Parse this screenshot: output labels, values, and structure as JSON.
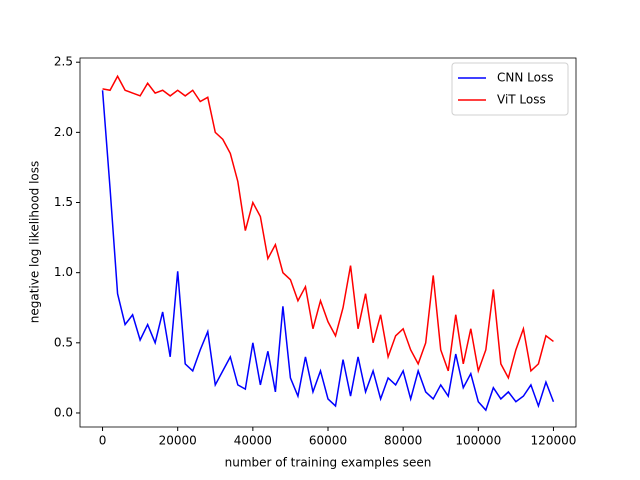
{
  "chart_data": {
    "type": "line",
    "xlabel": "number of training examples seen",
    "ylabel": "negative log likelihood loss",
    "x": [
      0,
      2000,
      4000,
      6000,
      8000,
      10000,
      12000,
      14000,
      16000,
      18000,
      20000,
      22000,
      24000,
      26000,
      28000,
      30000,
      32000,
      34000,
      36000,
      38000,
      40000,
      42000,
      44000,
      46000,
      48000,
      50000,
      52000,
      54000,
      56000,
      58000,
      60000,
      62000,
      64000,
      66000,
      68000,
      70000,
      72000,
      74000,
      76000,
      78000,
      80000,
      82000,
      84000,
      86000,
      88000,
      90000,
      92000,
      94000,
      96000,
      98000,
      100000,
      102000,
      104000,
      106000,
      108000,
      110000,
      112000,
      114000,
      116000,
      118000,
      120000
    ],
    "series": [
      {
        "name": "CNN Loss",
        "color": "#0000ff",
        "values": [
          2.3,
          1.6,
          0.85,
          0.63,
          0.7,
          0.52,
          0.63,
          0.5,
          0.72,
          0.4,
          1.01,
          0.35,
          0.3,
          0.45,
          0.58,
          0.2,
          0.3,
          0.4,
          0.2,
          0.17,
          0.5,
          0.2,
          0.44,
          0.15,
          0.76,
          0.25,
          0.12,
          0.4,
          0.15,
          0.3,
          0.1,
          0.05,
          0.38,
          0.12,
          0.4,
          0.15,
          0.3,
          0.1,
          0.25,
          0.2,
          0.3,
          0.1,
          0.3,
          0.15,
          0.1,
          0.2,
          0.12,
          0.42,
          0.18,
          0.28,
          0.08,
          0.02,
          0.18,
          0.1,
          0.15,
          0.08,
          0.12,
          0.2,
          0.05,
          0.22,
          0.08
        ]
      },
      {
        "name": "ViT Loss",
        "color": "#ff0000",
        "values": [
          2.31,
          2.3,
          2.4,
          2.3,
          2.28,
          2.26,
          2.35,
          2.28,
          2.3,
          2.26,
          2.3,
          2.26,
          2.3,
          2.22,
          2.25,
          2.0,
          1.95,
          1.85,
          1.65,
          1.3,
          1.5,
          1.4,
          1.1,
          1.2,
          1.0,
          0.95,
          0.8,
          0.9,
          0.6,
          0.8,
          0.65,
          0.55,
          0.75,
          1.05,
          0.6,
          0.85,
          0.5,
          0.7,
          0.4,
          0.55,
          0.6,
          0.45,
          0.35,
          0.5,
          0.98,
          0.45,
          0.3,
          0.7,
          0.35,
          0.6,
          0.3,
          0.45,
          0.88,
          0.35,
          0.25,
          0.45,
          0.6,
          0.3,
          0.35,
          0.55,
          0.51
        ]
      }
    ],
    "xlim": [
      -6000,
      126000
    ],
    "ylim": [
      -0.1,
      2.53
    ],
    "xticks": [
      0,
      20000,
      40000,
      60000,
      80000,
      100000,
      120000
    ],
    "yticks": [
      {
        "value": 0,
        "label": "0.0"
      },
      0.5,
      {
        "value": 1,
        "label": "1.0"
      },
      1.5,
      {
        "value": 2,
        "label": "2.0"
      },
      2.5
    ],
    "legend": "upper right"
  }
}
